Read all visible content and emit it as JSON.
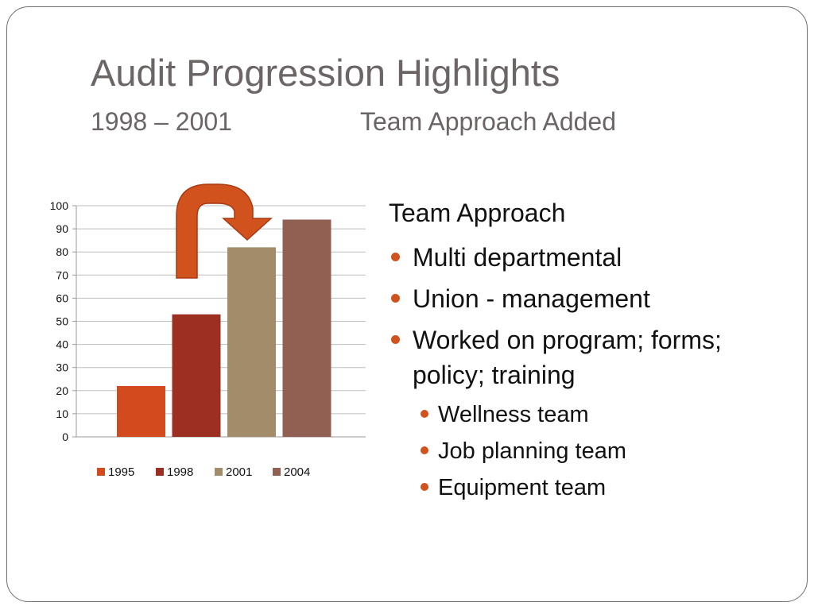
{
  "slide": {
    "title": "Audit Progression Highlights",
    "subtitle_period": "1998 – 2001",
    "subtitle_note": "Team Approach Added"
  },
  "bullets": {
    "heading": "Team Approach",
    "items": [
      {
        "text": "Multi departmental",
        "level": 1
      },
      {
        "text": "Union - management",
        "level": 1
      },
      {
        "text": "Worked on program; forms; policy; training",
        "level": 1
      },
      {
        "text": "Wellness team",
        "level": 2
      },
      {
        "text": "Job planning team",
        "level": 2
      },
      {
        "text": "Equipment team",
        "level": 2
      }
    ]
  },
  "colors": {
    "accent": "#d2521e",
    "frame": "#6e6e6e",
    "title_text": "#6b6565"
  },
  "chart_data": {
    "type": "bar",
    "categories": [
      "1995",
      "1998",
      "2001",
      "2004"
    ],
    "series": [
      {
        "name": "1995",
        "values": [
          22,
          null,
          null,
          null
        ],
        "color": "#d34a1f"
      },
      {
        "name": "1998",
        "values": [
          null,
          53,
          null,
          null
        ],
        "color": "#9c2f21"
      },
      {
        "name": "2001",
        "values": [
          null,
          null,
          82,
          null
        ],
        "color": "#a38c6a"
      },
      {
        "name": "2004",
        "values": [
          null,
          null,
          null,
          94
        ],
        "color": "#925f53"
      }
    ],
    "title": "",
    "xlabel": "",
    "ylabel": "",
    "ylim": [
      0,
      100
    ],
    "yticks": [
      0,
      10,
      20,
      30,
      40,
      50,
      60,
      70,
      80,
      90,
      100
    ],
    "grid": true,
    "legend": "bottom",
    "annotation": "curved-arrow-icon"
  }
}
